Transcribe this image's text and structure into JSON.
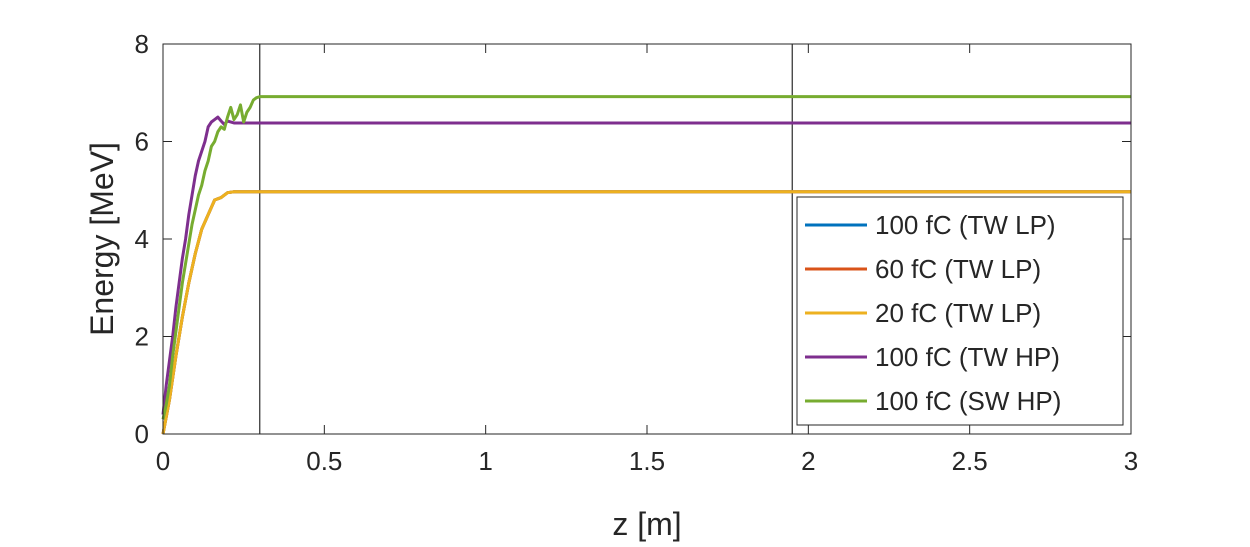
{
  "chart_data": {
    "type": "line",
    "title": "",
    "xlabel": "z [m]",
    "ylabel": "Energy [MeV]",
    "xlim": [
      0,
      3
    ],
    "ylim": [
      0,
      8
    ],
    "xticks": [
      0,
      0.5,
      1,
      1.5,
      2,
      2.5,
      3
    ],
    "xtick_labels": [
      "0",
      "0.5",
      "1",
      "1.5",
      "2",
      "2.5",
      "3"
    ],
    "yticks": [
      0,
      2,
      4,
      6,
      8
    ],
    "ytick_labels": [
      "0",
      "2",
      "4",
      "6",
      "8"
    ],
    "grid": false,
    "legend_position": "right",
    "vertical_lines": [
      0.3,
      1.95
    ],
    "series": [
      {
        "name": "100 fC (TW LP)",
        "color": "#0072BD",
        "x": [
          0,
          0.02,
          0.04,
          0.06,
          0.08,
          0.1,
          0.12,
          0.14,
          0.16,
          0.18,
          0.2,
          0.22,
          0.25,
          0.3,
          3
        ],
        "y": [
          0,
          0.7,
          1.6,
          2.4,
          3.1,
          3.7,
          4.2,
          4.5,
          4.8,
          4.85,
          4.95,
          4.97,
          4.97,
          4.97,
          4.97
        ]
      },
      {
        "name": "60 fC (TW LP)",
        "color": "#D95319",
        "x": [
          0,
          0.02,
          0.04,
          0.06,
          0.08,
          0.1,
          0.12,
          0.14,
          0.16,
          0.18,
          0.2,
          0.22,
          0.25,
          0.3,
          3
        ],
        "y": [
          0,
          0.7,
          1.6,
          2.4,
          3.1,
          3.7,
          4.2,
          4.5,
          4.8,
          4.85,
          4.95,
          4.97,
          4.97,
          4.97,
          4.97
        ]
      },
      {
        "name": "20 fC (TW LP)",
        "color": "#EDB120",
        "x": [
          0,
          0.02,
          0.04,
          0.06,
          0.08,
          0.1,
          0.12,
          0.14,
          0.16,
          0.18,
          0.2,
          0.22,
          0.25,
          0.3,
          3
        ],
        "y": [
          0,
          0.7,
          1.6,
          2.4,
          3.1,
          3.7,
          4.2,
          4.5,
          4.8,
          4.85,
          4.95,
          4.97,
          4.97,
          4.97,
          4.97
        ]
      },
      {
        "name": "100 fC (TW HP)",
        "color": "#7E2F8E",
        "x": [
          0,
          0.01,
          0.02,
          0.03,
          0.04,
          0.05,
          0.06,
          0.07,
          0.08,
          0.09,
          0.1,
          0.11,
          0.12,
          0.13,
          0.14,
          0.15,
          0.16,
          0.17,
          0.18,
          0.19,
          0.2,
          0.22,
          0.25,
          0.3,
          3
        ],
        "y": [
          0.4,
          1.0,
          1.5,
          2.0,
          2.6,
          3.1,
          3.6,
          4.0,
          4.5,
          4.9,
          5.3,
          5.6,
          5.8,
          6.0,
          6.3,
          6.4,
          6.45,
          6.5,
          6.42,
          6.35,
          6.42,
          6.38,
          6.38,
          6.38,
          6.38
        ]
      },
      {
        "name": "100 fC (SW HP)",
        "color": "#77AC30",
        "x": [
          0,
          0.01,
          0.02,
          0.03,
          0.04,
          0.05,
          0.06,
          0.07,
          0.08,
          0.09,
          0.1,
          0.11,
          0.12,
          0.13,
          0.14,
          0.15,
          0.16,
          0.17,
          0.18,
          0.19,
          0.2,
          0.21,
          0.22,
          0.23,
          0.24,
          0.25,
          0.26,
          0.27,
          0.28,
          0.29,
          0.3,
          3
        ],
        "y": [
          0.3,
          0.6,
          1.0,
          1.6,
          2.1,
          2.6,
          3.1,
          3.5,
          3.9,
          4.3,
          4.6,
          4.9,
          5.1,
          5.4,
          5.6,
          5.9,
          6.0,
          6.2,
          6.3,
          6.25,
          6.5,
          6.7,
          6.45,
          6.55,
          6.75,
          6.4,
          6.6,
          6.7,
          6.85,
          6.9,
          6.92,
          6.92
        ]
      }
    ]
  }
}
